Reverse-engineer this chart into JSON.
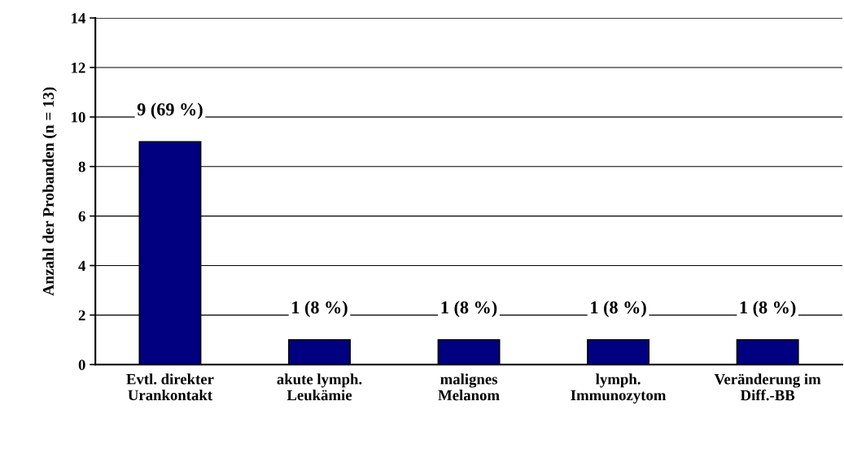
{
  "chart_data": {
    "type": "bar",
    "ylabel": "Anzahl der Probanden (n = 13)",
    "categories": [
      "Evtl. direkter\nUrankontakt",
      "akute lymph.\nLeukämie",
      "malignes\nMelanom",
      "lymph.\nImmunozytom",
      "Veränderung im\nDiff.-BB"
    ],
    "values": [
      9,
      1,
      1,
      1,
      1
    ],
    "color": "#000080",
    "value_labels": [
      "9 (69 %)",
      "1 (8 %)",
      "1 (8 %)",
      "1 (8 %)",
      "1 (8 %)"
    ],
    "ylim": [
      0,
      14
    ],
    "yticks": [
      0,
      2,
      4,
      6,
      8,
      10,
      12,
      14
    ],
    "grid": "y",
    "legend": false
  }
}
